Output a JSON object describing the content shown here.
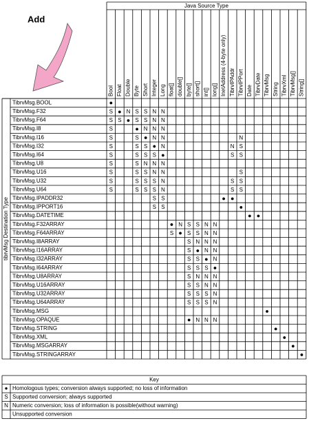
{
  "add_label": "Add",
  "source_header": "Java Source Type",
  "destination_header": "tibrvMsg Destination Type",
  "columns": [
    "Bool",
    "Float",
    "Double",
    "Byte",
    "Short",
    "Integer",
    "Long",
    "float[]",
    "double[]",
    "byte[]",
    "short[]",
    "int[]",
    "long[]",
    "InetAddress (4-byte only)",
    "TibrvIPAddr",
    "TibrvIPPort",
    "Date",
    "TibrvDate",
    "TibrvMsg",
    "String",
    "TibrvXml",
    "TibrvMsg[]",
    "String[]"
  ],
  "rows": [
    {
      "label": "TibrvMsg.BOOL",
      "cells": [
        "●",
        null,
        null,
        null,
        null,
        null,
        null,
        null,
        null,
        null,
        null,
        null,
        null,
        null,
        null,
        null,
        null,
        null,
        null,
        null,
        null,
        null,
        null
      ]
    },
    {
      "label": "TibrvMsg.F32",
      "cells": [
        "S",
        "●",
        "N",
        "S",
        "S",
        "N",
        "N",
        null,
        null,
        null,
        null,
        null,
        null,
        null,
        null,
        null,
        null,
        null,
        null,
        null,
        null,
        null,
        null
      ]
    },
    {
      "label": "TibrvMsg.F64",
      "cells": [
        "S",
        "S",
        "●",
        "S",
        "S",
        "N",
        "N",
        null,
        null,
        null,
        null,
        null,
        null,
        null,
        null,
        null,
        null,
        null,
        null,
        null,
        null,
        null,
        null
      ]
    },
    {
      "label": "TibrvMsg.I8",
      "cells": [
        "S",
        null,
        null,
        "●",
        "N",
        "N",
        "N",
        null,
        null,
        null,
        null,
        null,
        null,
        null,
        null,
        null,
        null,
        null,
        null,
        null,
        null,
        null,
        null
      ]
    },
    {
      "label": "TibrvMsg.I16",
      "cells": [
        "S",
        null,
        null,
        "S",
        "●",
        "N",
        "N",
        null,
        null,
        null,
        null,
        null,
        null,
        null,
        null,
        "N",
        null,
        null,
        null,
        null,
        null,
        null,
        null
      ]
    },
    {
      "label": "TibrvMsg.I32",
      "cells": [
        "S",
        null,
        null,
        "S",
        "S",
        "●",
        "N",
        null,
        null,
        null,
        null,
        null,
        null,
        null,
        "N",
        "S",
        null,
        null,
        null,
        null,
        null,
        null,
        null
      ]
    },
    {
      "label": "TibrvMsg.I64",
      "cells": [
        "S",
        null,
        null,
        "S",
        "S",
        "S",
        "●",
        null,
        null,
        null,
        null,
        null,
        null,
        null,
        "S",
        "S",
        null,
        null,
        null,
        null,
        null,
        null,
        null
      ]
    },
    {
      "label": "TibrvMsg.U8",
      "cells": [
        "S",
        null,
        null,
        "S",
        "N",
        "N",
        "N",
        null,
        null,
        null,
        null,
        null,
        null,
        null,
        null,
        null,
        null,
        null,
        null,
        null,
        null,
        null,
        null
      ]
    },
    {
      "label": "TibrvMsg.U16",
      "cells": [
        "S",
        null,
        null,
        "S",
        "S",
        "N",
        "N",
        null,
        null,
        null,
        null,
        null,
        null,
        null,
        null,
        "S",
        null,
        null,
        null,
        null,
        null,
        null,
        null
      ]
    },
    {
      "label": "TibrvMsg.U32",
      "cells": [
        "S",
        null,
        null,
        "S",
        "S",
        "S",
        "N",
        null,
        null,
        null,
        null,
        null,
        null,
        null,
        "S",
        "S",
        null,
        null,
        null,
        null,
        null,
        null,
        null
      ]
    },
    {
      "label": "TibrvMsg.U64",
      "cells": [
        "S",
        null,
        null,
        "S",
        "S",
        "S",
        "N",
        null,
        null,
        null,
        null,
        null,
        null,
        null,
        "S",
        "S",
        null,
        null,
        null,
        null,
        null,
        null,
        null
      ]
    },
    {
      "label": "TibrvMsg.IPADDR32",
      "cells": [
        null,
        null,
        null,
        null,
        null,
        "S",
        "S",
        null,
        null,
        null,
        null,
        null,
        null,
        "●",
        "●",
        null,
        null,
        null,
        null,
        null,
        null,
        null,
        null
      ]
    },
    {
      "label": "TibrvMsg.IPPORT16",
      "cells": [
        null,
        null,
        null,
        null,
        null,
        "S",
        "S",
        null,
        null,
        null,
        null,
        null,
        null,
        null,
        null,
        "●",
        null,
        null,
        null,
        null,
        null,
        null,
        null
      ]
    },
    {
      "label": "TibrvMsg.DATETIME",
      "cells": [
        null,
        null,
        null,
        null,
        null,
        null,
        null,
        null,
        null,
        null,
        null,
        null,
        null,
        null,
        null,
        null,
        "●",
        "●",
        null,
        null,
        null,
        null,
        null
      ]
    },
    {
      "label": "TibrvMsg.F32ARRAY",
      "cells": [
        null,
        null,
        null,
        null,
        null,
        null,
        null,
        "●",
        "N",
        "S",
        "S",
        "N",
        "N",
        null,
        null,
        null,
        null,
        null,
        null,
        null,
        null,
        null,
        null
      ]
    },
    {
      "label": "TibrvMsg.F64ARRAY",
      "cells": [
        null,
        null,
        null,
        null,
        null,
        null,
        null,
        "S",
        "●",
        "S",
        "S",
        "N",
        "N",
        null,
        null,
        null,
        null,
        null,
        null,
        null,
        null,
        null,
        null
      ]
    },
    {
      "label": "TibrvMsg.I8ARRAY",
      "cells": [
        null,
        null,
        null,
        null,
        null,
        null,
        null,
        null,
        null,
        "S",
        "N",
        "N",
        "N",
        null,
        null,
        null,
        null,
        null,
        null,
        null,
        null,
        null,
        null
      ]
    },
    {
      "label": "TibrvMsg.I16ARRAY",
      "cells": [
        null,
        null,
        null,
        null,
        null,
        null,
        null,
        null,
        null,
        "S",
        "●",
        "N",
        "N",
        null,
        null,
        null,
        null,
        null,
        null,
        null,
        null,
        null,
        null
      ]
    },
    {
      "label": "TibrvMsg.I32ARRAY",
      "cells": [
        null,
        null,
        null,
        null,
        null,
        null,
        null,
        null,
        null,
        "S",
        "S",
        "●",
        "N",
        null,
        null,
        null,
        null,
        null,
        null,
        null,
        null,
        null,
        null
      ]
    },
    {
      "label": "TibrvMsg.I64ARRAY",
      "cells": [
        null,
        null,
        null,
        null,
        null,
        null,
        null,
        null,
        null,
        "S",
        "S",
        "S",
        "●",
        null,
        null,
        null,
        null,
        null,
        null,
        null,
        null,
        null,
        null
      ]
    },
    {
      "label": "TibrvMsg.U8ARRAY",
      "cells": [
        null,
        null,
        null,
        null,
        null,
        null,
        null,
        null,
        null,
        "S",
        "N",
        "N",
        "N",
        null,
        null,
        null,
        null,
        null,
        null,
        null,
        null,
        null,
        null
      ]
    },
    {
      "label": "TibrvMsg.U16ARRAY",
      "cells": [
        null,
        null,
        null,
        null,
        null,
        null,
        null,
        null,
        null,
        "S",
        "S",
        "N",
        "N",
        null,
        null,
        null,
        null,
        null,
        null,
        null,
        null,
        null,
        null
      ]
    },
    {
      "label": "TibrvMsg.U32ARRAY",
      "cells": [
        null,
        null,
        null,
        null,
        null,
        null,
        null,
        null,
        null,
        "S",
        "S",
        "S",
        "N",
        null,
        null,
        null,
        null,
        null,
        null,
        null,
        null,
        null,
        null
      ]
    },
    {
      "label": "TibrvMsg.U64ARRAY",
      "cells": [
        null,
        null,
        null,
        null,
        null,
        null,
        null,
        null,
        null,
        "S",
        "S",
        "S",
        "N",
        null,
        null,
        null,
        null,
        null,
        null,
        null,
        null,
        null,
        null
      ]
    },
    {
      "label": "TibrvMsg.MSG",
      "cells": [
        null,
        null,
        null,
        null,
        null,
        null,
        null,
        null,
        null,
        null,
        null,
        null,
        null,
        null,
        null,
        null,
        null,
        null,
        "●",
        null,
        null,
        null,
        null
      ]
    },
    {
      "label": "TibrvMsg.OPAQUE",
      "cells": [
        null,
        null,
        null,
        null,
        null,
        null,
        null,
        null,
        null,
        "●",
        "N",
        "N",
        "N",
        null,
        null,
        null,
        null,
        null,
        null,
        null,
        null,
        null,
        null
      ]
    },
    {
      "label": "TibrvMsg.STRING",
      "cells": [
        null,
        null,
        null,
        null,
        null,
        null,
        null,
        null,
        null,
        null,
        null,
        null,
        null,
        null,
        null,
        null,
        null,
        null,
        null,
        "●",
        null,
        null,
        null
      ]
    },
    {
      "label": "TibrvMsg.XML",
      "cells": [
        null,
        null,
        null,
        null,
        null,
        null,
        null,
        null,
        null,
        null,
        null,
        null,
        null,
        null,
        null,
        null,
        null,
        null,
        null,
        null,
        "●",
        null,
        null
      ]
    },
    {
      "label": "TibrvMsg.MSGARRAY",
      "cells": [
        null,
        null,
        null,
        null,
        null,
        null,
        null,
        null,
        null,
        null,
        null,
        null,
        null,
        null,
        null,
        null,
        null,
        null,
        null,
        null,
        null,
        "●",
        null
      ]
    },
    {
      "label": "TibrvMsg.STRINGARRAY",
      "cells": [
        null,
        null,
        null,
        null,
        null,
        null,
        null,
        null,
        null,
        null,
        null,
        null,
        null,
        null,
        null,
        null,
        null,
        null,
        null,
        null,
        null,
        null,
        "●"
      ]
    }
  ],
  "key": {
    "title": "Key",
    "entries": [
      {
        "symbol": "●",
        "text": "Homologous types; conversion always supported; no loss of information"
      },
      {
        "symbol": "S",
        "text": "Supported conversion; always supported"
      },
      {
        "symbol": "N",
        "text": "Numeric conversion; loss of information is possible(without warning)"
      },
      {
        "text": "Unsupported conversion"
      }
    ]
  }
}
